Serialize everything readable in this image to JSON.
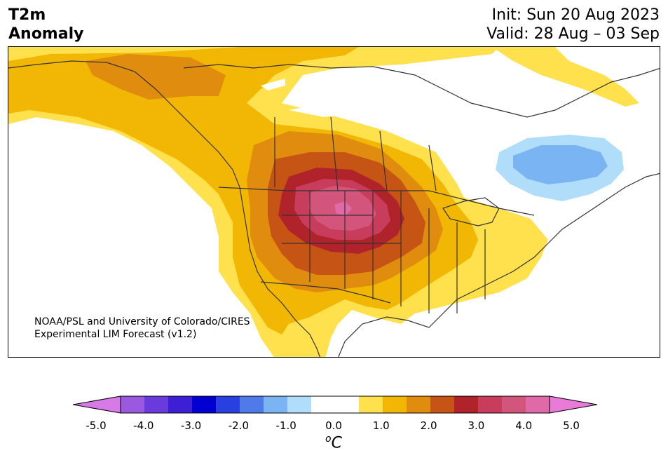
{
  "title": {
    "variable": "T2m",
    "kind": "Anomaly",
    "init": "Init: Sun 20 Aug 2023",
    "valid": "Valid: 28 Aug – 03 Sep"
  },
  "credit": {
    "line1": "NOAA/PSL and University of Colorado/CIRES",
    "line2": "Experimental LIM Forecast (v1.2)"
  },
  "colorbar": {
    "unit_base": "C",
    "unit_sup": "o",
    "ticks": [
      "-5.0",
      "-4.0",
      "-3.0",
      "-2.0",
      "-1.0",
      "0.0",
      "1.0",
      "2.0",
      "3.0",
      "4.0",
      "5.0"
    ],
    "colors": [
      "#d67ae8",
      "#9b59e0",
      "#6a3bdc",
      "#3d1fd6",
      "#0000d0",
      "#2a3fe0",
      "#4f7ae8",
      "#7ab4f2",
      "#b0defa",
      "#ffffff",
      "#ffffff",
      "#ffe14d",
      "#f2b705",
      "#e08c0f",
      "#c65515",
      "#b0232a",
      "#c83c5c",
      "#d4557c",
      "#e06aa8",
      "#e87ad8"
    ],
    "range": [
      -5.0,
      5.0
    ],
    "step": 0.5
  },
  "legend_colors": {
    "light_blue": "#b0defa",
    "blue": "#7ab4f2",
    "yellow": "#ffe14d",
    "gold": "#f2b705",
    "orange": "#e08c0f",
    "dark_orange": "#c65515",
    "red": "#b0232a",
    "magenta": "#c83c5c",
    "pink": "#d4557c"
  }
}
